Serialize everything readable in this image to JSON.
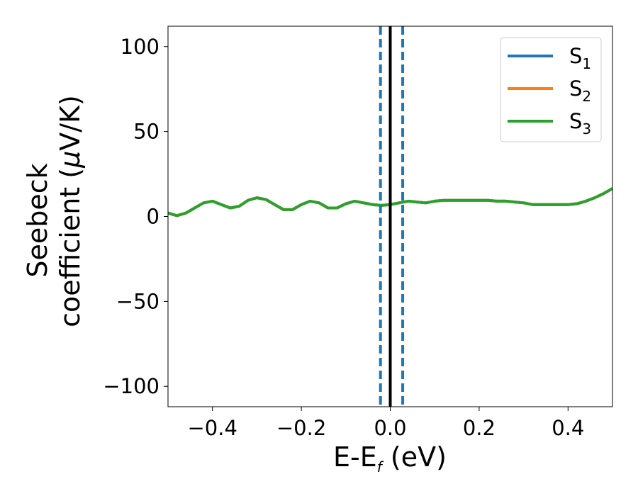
{
  "chart_data": {
    "type": "line",
    "xlabel": "E-E",
    "xlabel_sub": "f",
    "xlabel_unit": " (eV)",
    "ylabel_line1": "Seebeck",
    "ylabel_line2_pre": "coefficient  (",
    "ylabel_mu": "μ",
    "ylabel_line2_post": "V/K)",
    "xlim": [
      -0.5,
      0.5
    ],
    "ylim": [
      -112,
      112
    ],
    "xticks": [
      -0.4,
      -0.2,
      0.0,
      0.2,
      0.4
    ],
    "xtick_labels": [
      "−0.4",
      "−0.2",
      "0.0",
      "0.2",
      "0.4"
    ],
    "yticks": [
      -100,
      -50,
      0,
      50,
      100
    ],
    "ytick_labels": [
      "−100",
      "−50",
      "0",
      "50",
      "100"
    ],
    "legend_position": "top-right",
    "vlines": [
      {
        "x": 0.0,
        "style": "solid",
        "color": "#000000"
      },
      {
        "x": -0.022,
        "style": "dashed",
        "color": "#1f77b4"
      },
      {
        "x": 0.028,
        "style": "dashed",
        "color": "#1f77b4"
      }
    ],
    "x": [
      -0.5,
      -0.48,
      -0.46,
      -0.44,
      -0.42,
      -0.4,
      -0.38,
      -0.36,
      -0.34,
      -0.32,
      -0.3,
      -0.28,
      -0.26,
      -0.24,
      -0.22,
      -0.2,
      -0.18,
      -0.16,
      -0.14,
      -0.12,
      -0.1,
      -0.08,
      -0.06,
      -0.04,
      -0.02,
      0.0,
      0.02,
      0.04,
      0.06,
      0.08,
      0.1,
      0.12,
      0.14,
      0.16,
      0.18,
      0.2,
      0.22,
      0.24,
      0.26,
      0.28,
      0.3,
      0.32,
      0.34,
      0.36,
      0.38,
      0.4,
      0.42,
      0.44,
      0.46,
      0.48,
      0.5
    ],
    "series": [
      {
        "name": "S",
        "name_sub": "1",
        "color": "#1f77b4",
        "values": [
          2,
          0.5,
          2,
          5,
          8,
          9,
          7,
          5,
          6,
          9.5,
          11,
          10,
          7,
          4,
          4,
          7,
          9,
          8,
          5,
          5,
          7.5,
          9,
          8,
          7,
          6.5,
          7,
          8,
          9,
          8.5,
          8,
          9,
          9.5,
          9.5,
          9.5,
          9.5,
          9.5,
          9.5,
          9,
          9,
          8.5,
          8,
          7,
          7,
          7,
          7,
          7,
          7.5,
          9,
          11,
          13.5,
          16.5
        ]
      },
      {
        "name": "S",
        "name_sub": "2",
        "color": "#ff7f0e",
        "values": [
          2,
          0.5,
          2,
          5,
          8,
          9,
          7,
          5,
          6,
          9.5,
          11,
          10,
          7,
          4,
          4,
          7,
          9,
          8,
          5,
          5,
          7.5,
          9,
          8,
          7,
          6.5,
          7,
          8,
          9,
          8.5,
          8,
          9,
          9.5,
          9.5,
          9.5,
          9.5,
          9.5,
          9.5,
          9,
          9,
          8.5,
          8,
          7,
          7,
          7,
          7,
          7,
          7.5,
          9,
          11,
          13.5,
          16.5
        ]
      },
      {
        "name": "S",
        "name_sub": "3",
        "color": "#2ca02c",
        "values": [
          2,
          0.5,
          2,
          5,
          8,
          9,
          7,
          5,
          6,
          9.5,
          11,
          10,
          7,
          4,
          4,
          7,
          9,
          8,
          5,
          5,
          7.5,
          9,
          8,
          7,
          6.5,
          7,
          8,
          9,
          8.5,
          8,
          9,
          9.5,
          9.5,
          9.5,
          9.5,
          9.5,
          9.5,
          9,
          9,
          8.5,
          8,
          7,
          7,
          7,
          7,
          7,
          7.5,
          9,
          11,
          13.5,
          16.5
        ]
      }
    ]
  }
}
